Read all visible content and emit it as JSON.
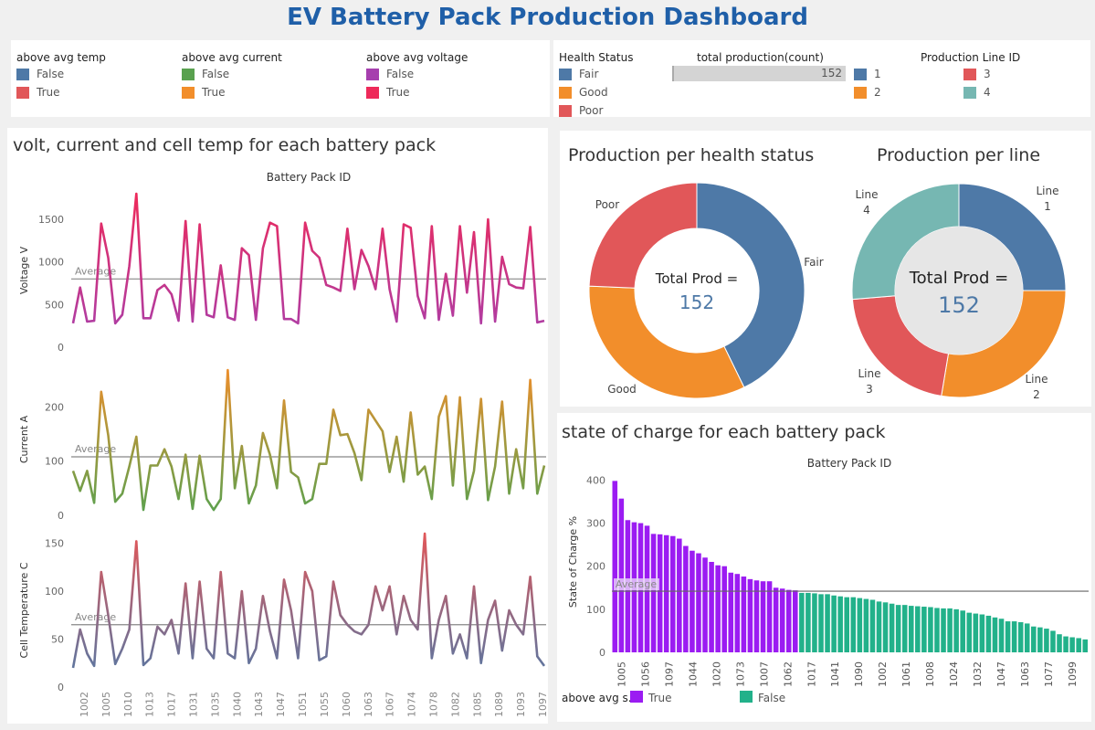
{
  "header": {
    "title": "EV Battery Pack Production Dashboard"
  },
  "colors": {
    "temp_false": "#4e79a7",
    "temp_true": "#e15759",
    "current_false": "#59a14f",
    "current_true": "#f28e2b",
    "voltage_false": "#a63fae",
    "voltage_true": "#ee2a5a",
    "fair": "#4e79a7",
    "good": "#f28e2b",
    "poor": "#e15759",
    "line1": "#4e79a7",
    "line2": "#f28e2b",
    "line3": "#e15759",
    "line4": "#76b7b2",
    "soc_true": "#9b1cf2",
    "soc_false": "#22b18a",
    "title": "#1f5fa8"
  },
  "legends": {
    "temp": {
      "title": "above avg temp",
      "items": [
        "False",
        "True"
      ]
    },
    "current": {
      "title": "above avg current",
      "items": [
        "False",
        "True"
      ]
    },
    "voltage": {
      "title": "above avg voltage",
      "items": [
        "False",
        "True"
      ]
    },
    "health": {
      "title": "Health Status",
      "items": [
        "Fair",
        "Good",
        "Poor"
      ]
    },
    "total": {
      "title": "total production(count)",
      "value": "152",
      "fraction": 1.0
    },
    "line": {
      "title": "Production Line ID",
      "items": [
        "1",
        "2",
        "3",
        "4"
      ]
    }
  },
  "line_chart": {
    "title": "volt, current and cell temp for each battery pack",
    "xlabel": "Battery Pack ID",
    "average_label": "Average",
    "x_ticks": [
      "1002",
      "1005",
      "1010",
      "1013",
      "1017",
      "1031",
      "1035",
      "1040",
      "1043",
      "1047",
      "1051",
      "1055",
      "1060",
      "1063",
      "1067",
      "1074",
      "1078",
      "1082",
      "1085",
      "1089",
      "1093",
      "1097"
    ]
  },
  "chart_data": [
    {
      "type": "line",
      "title": "",
      "ylabel": "Voltage V",
      "ylim": [
        0,
        1800
      ],
      "yticks": [
        0,
        500,
        1000,
        1500
      ],
      "average": 800,
      "series": [
        {
          "values": [
            280,
            700,
            300,
            310,
            1450,
            1050,
            280,
            380,
            950,
            1800,
            340,
            340,
            670,
            730,
            620,
            310,
            1480,
            300,
            1440,
            380,
            350,
            960,
            350,
            320,
            1160,
            1080,
            320,
            1160,
            1460,
            1420,
            330,
            330,
            280,
            1460,
            1130,
            1050,
            730,
            700,
            660,
            1390,
            680,
            1140,
            950,
            680,
            1390,
            680,
            300,
            1440,
            1400,
            600,
            340,
            1420,
            320,
            860,
            370,
            1420,
            640,
            1350,
            280,
            1500,
            300,
            1060,
            740,
            700,
            690,
            1410,
            290,
            310
          ]
        }
      ]
    },
    {
      "type": "line",
      "title": "",
      "ylabel": "Current A",
      "ylim": [
        0,
        280
      ],
      "yticks": [
        0,
        100,
        200
      ],
      "average": 108,
      "series": [
        {
          "values": [
            82,
            45,
            82,
            23,
            228,
            148,
            25,
            40,
            90,
            145,
            10,
            92,
            92,
            122,
            90,
            30,
            112,
            12,
            110,
            30,
            10,
            30,
            268,
            50,
            128,
            22,
            55,
            152,
            112,
            50,
            212,
            80,
            70,
            22,
            30,
            95,
            95,
            195,
            148,
            150,
            115,
            65,
            195,
            175,
            155,
            80,
            145,
            62,
            190,
            75,
            90,
            30,
            182,
            220,
            55,
            218,
            30,
            82,
            215,
            28,
            90,
            210,
            40,
            122,
            50,
            250,
            40,
            92
          ]
        }
      ]
    },
    {
      "type": "line",
      "title": "",
      "ylabel": "Cell Temperature C",
      "ylim": [
        0,
        160
      ],
      "yticks": [
        0,
        50,
        100,
        150
      ],
      "average": 65,
      "series": [
        {
          "values": [
            20,
            60,
            35,
            22,
            120,
            75,
            24,
            40,
            60,
            152,
            23,
            30,
            63,
            55,
            70,
            35,
            108,
            30,
            110,
            40,
            30,
            120,
            35,
            30,
            100,
            25,
            40,
            95,
            58,
            30,
            112,
            80,
            30,
            120,
            100,
            28,
            32,
            110,
            75,
            65,
            58,
            55,
            65,
            105,
            80,
            105,
            55,
            95,
            70,
            60,
            160,
            30,
            70,
            95,
            35,
            55,
            30,
            105,
            25,
            70,
            90,
            38,
            80,
            65,
            55,
            115,
            32,
            22
          ]
        }
      ]
    },
    {
      "type": "pie",
      "title": "Production per health status",
      "center_label": "Total Prod =",
      "total": "152",
      "slices": [
        {
          "label": "Fair",
          "value": 65
        },
        {
          "label": "Good",
          "value": 50
        },
        {
          "label": "Poor",
          "value": 37
        }
      ]
    },
    {
      "type": "pie",
      "title": "Production per line",
      "center_label": "Total Prod =",
      "total": "152",
      "slices": [
        {
          "label": "Line 1",
          "value": 38
        },
        {
          "label": "Line 2",
          "value": 42
        },
        {
          "label": "Line 3",
          "value": 32
        },
        {
          "label": "Line 4",
          "value": 40
        }
      ]
    },
    {
      "type": "bar",
      "title": "state of charge for each battery pack",
      "xlabel": "Battery Pack ID",
      "ylabel": "State of Charge %",
      "ylim": [
        0,
        420
      ],
      "yticks": [
        0,
        100,
        200,
        300,
        400
      ],
      "average": 142,
      "average_label": "Average",
      "legend_title": "above avg s..",
      "legend_items": [
        "True",
        "False"
      ],
      "x_ticks": [
        "1005",
        "1056",
        "1097",
        "1044",
        "1020",
        "1073",
        "1007",
        "1062",
        "1017",
        "1041",
        "1090",
        "1002",
        "1061",
        "1008",
        "1024",
        "1032",
        "1047",
        "1063",
        "1077",
        "1099"
      ],
      "values": [
        398,
        357,
        307,
        302,
        300,
        294,
        275,
        274,
        272,
        270,
        264,
        247,
        236,
        230,
        220,
        210,
        202,
        200,
        185,
        182,
        176,
        170,
        167,
        165,
        165,
        150,
        148,
        145,
        144,
        138,
        138,
        137,
        135,
        135,
        132,
        130,
        128,
        128,
        126,
        124,
        122,
        118,
        116,
        113,
        110,
        110,
        108,
        107,
        106,
        105,
        103,
        102,
        102,
        100,
        97,
        92,
        90,
        88,
        85,
        81,
        78,
        72,
        72,
        70,
        67,
        60,
        58,
        55,
        50,
        42,
        37,
        35,
        33,
        30
      ]
    }
  ]
}
